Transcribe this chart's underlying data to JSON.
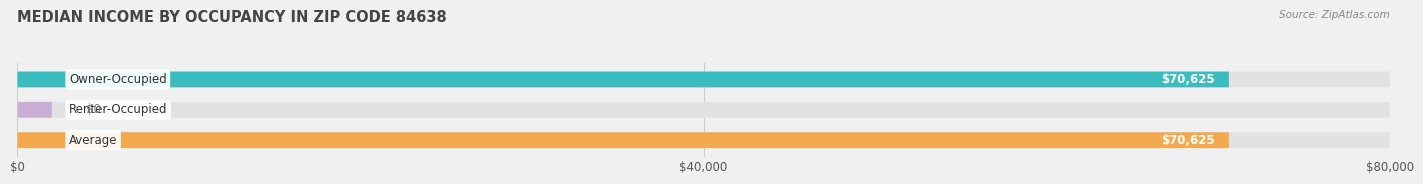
{
  "title": "MEDIAN INCOME BY OCCUPANCY IN ZIP CODE 84638",
  "source": "Source: ZipAtlas.com",
  "categories": [
    "Owner-Occupied",
    "Renter-Occupied",
    "Average"
  ],
  "values": [
    70625,
    0,
    70625
  ],
  "bar_colors": [
    "#3bbcbe",
    "#c9aed6",
    "#f5a94e"
  ],
  "bar_labels": [
    "$70,625",
    "$0",
    "$70,625"
  ],
  "label_colors": [
    "#ffffff",
    "#888888",
    "#ffffff"
  ],
  "background_color": "#f0f0f0",
  "bar_bg_color": "#e2e2e2",
  "xlim": [
    0,
    80000
  ],
  "xticks": [
    0,
    40000,
    80000
  ],
  "xtick_labels": [
    "$0",
    "$40,000",
    "$80,000"
  ],
  "title_fontsize": 10.5,
  "bar_height": 0.52,
  "figsize": [
    14.06,
    1.96
  ]
}
